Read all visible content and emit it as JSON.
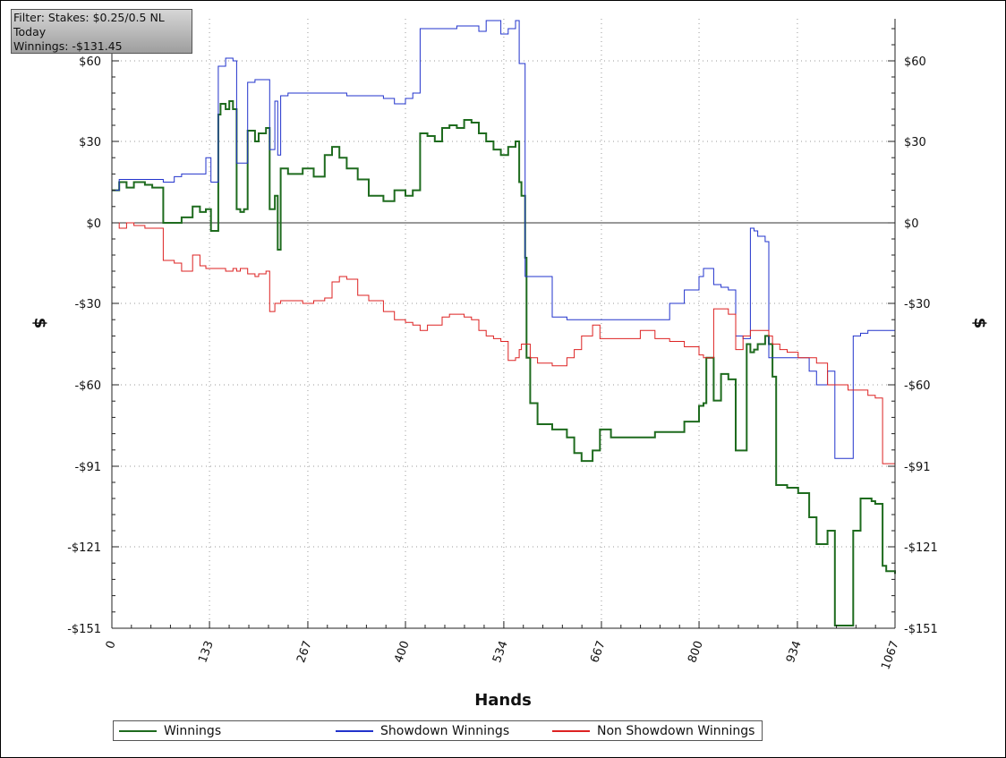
{
  "filter_box": {
    "line1": "Filter: Stakes: $0.25/0.5 NL",
    "line2": "Today",
    "line3": "Winnings: -$131.45"
  },
  "legend_items": [
    {
      "label": "Winnings",
      "color": "#1e6b1e"
    },
    {
      "label": "Showdown Winnings",
      "color": "#2233cc"
    },
    {
      "label": "Non Showdown Winnings",
      "color": "#dd2222"
    }
  ],
  "chart_data": {
    "type": "line",
    "xlabel": "Hands",
    "ylabel": "$",
    "xlim": [
      0,
      1067
    ],
    "ylim": [
      -151,
      75
    ],
    "x_ticks": [
      0,
      133,
      267,
      400,
      534,
      667,
      800,
      934,
      1067
    ],
    "x_tick_labels": [
      "0",
      "133",
      "267",
      "400",
      "534",
      "667",
      "800",
      "934",
      "1067"
    ],
    "y_ticks": [
      60,
      30,
      0,
      -30,
      -60,
      -91,
      -121,
      -151
    ],
    "y_tick_labels": [
      "$60",
      "$30",
      "$0",
      "-$30",
      "-$60",
      "-$91",
      "-$121",
      "-$151"
    ],
    "grid": true,
    "legend_position": "bottom",
    "series": [
      {
        "name": "Winnings",
        "color": "#1e6b1e",
        "x": [
          0,
          10,
          20,
          30,
          45,
          55,
          70,
          85,
          95,
          110,
          120,
          128,
          135,
          140,
          145,
          148,
          155,
          160,
          165,
          170,
          175,
          180,
          185,
          195,
          200,
          210,
          215,
          222,
          226,
          230,
          240,
          260,
          275,
          290,
          300,
          310,
          320,
          335,
          350,
          370,
          385,
          400,
          410,
          420,
          430,
          440,
          450,
          460,
          470,
          480,
          490,
          500,
          510,
          520,
          530,
          540,
          550,
          555,
          558,
          563,
          565,
          570,
          580,
          600,
          620,
          630,
          640,
          655,
          665,
          680,
          700,
          720,
          740,
          760,
          780,
          800,
          806,
          810,
          820,
          830,
          840,
          850,
          860,
          865,
          870,
          875,
          880,
          890,
          895,
          900,
          905,
          910,
          920,
          935,
          950,
          960,
          975,
          985,
          990,
          998,
          1003,
          1010,
          1020,
          1030,
          1035,
          1040,
          1045,
          1050,
          1055,
          1060,
          1067
        ],
        "y": [
          12,
          15,
          13,
          15,
          14,
          13,
          0,
          0,
          2,
          6,
          4,
          5,
          -3,
          -3,
          40,
          44,
          42,
          45,
          42,
          5,
          4,
          5,
          34,
          30,
          33,
          35,
          5,
          10,
          -10,
          20,
          18,
          20,
          17,
          25,
          28,
          24,
          20,
          16,
          10,
          8,
          12,
          10,
          12,
          33,
          32,
          30,
          35,
          36,
          35,
          38,
          37,
          33,
          30,
          27,
          25,
          28,
          30,
          15,
          10,
          -13,
          -50,
          -67,
          -75,
          -77,
          -80,
          -86,
          -89,
          -85,
          -77,
          -80,
          -80,
          -80,
          -78,
          -78,
          -74,
          -68,
          -67,
          -50,
          -66,
          -56,
          -58,
          -85,
          -85,
          -45,
          -48,
          -47,
          -45,
          -42,
          -45,
          -57,
          -98,
          -98,
          -99,
          -101,
          -110,
          -120,
          -115,
          -150,
          -150,
          -150,
          -150,
          -115,
          -103,
          -103,
          -104,
          -105,
          -105,
          -128,
          -130,
          -130,
          -131
        ]
      },
      {
        "name": "Showdown Winnings",
        "color": "#2233cc",
        "x": [
          0,
          10,
          20,
          30,
          45,
          55,
          70,
          85,
          95,
          110,
          120,
          128,
          135,
          140,
          145,
          148,
          155,
          160,
          165,
          170,
          175,
          180,
          185,
          195,
          200,
          210,
          215,
          222,
          226,
          230,
          240,
          260,
          275,
          290,
          300,
          310,
          320,
          335,
          350,
          370,
          385,
          400,
          410,
          420,
          430,
          440,
          450,
          460,
          470,
          480,
          490,
          500,
          510,
          520,
          530,
          540,
          550,
          555,
          558,
          563,
          565,
          570,
          580,
          600,
          620,
          630,
          640,
          655,
          665,
          680,
          700,
          720,
          740,
          760,
          780,
          800,
          806,
          810,
          820,
          830,
          840,
          850,
          860,
          865,
          870,
          875,
          880,
          890,
          895,
          900,
          905,
          910,
          920,
          935,
          950,
          960,
          975,
          985,
          990,
          998,
          1003,
          1010,
          1020,
          1030,
          1035,
          1040,
          1045,
          1050,
          1055,
          1060,
          1067
        ],
        "y": [
          12,
          16,
          16,
          16,
          16,
          16,
          15,
          17,
          18,
          18,
          18,
          24,
          15,
          15,
          58,
          58,
          61,
          61,
          60,
          22,
          22,
          22,
          52,
          53,
          53,
          53,
          27,
          45,
          25,
          47,
          48,
          48,
          48,
          48,
          48,
          48,
          47,
          47,
          47,
          46,
          44,
          46,
          48,
          72,
          72,
          72,
          72,
          72,
          73,
          73,
          73,
          71,
          75,
          75,
          70,
          72,
          75,
          59,
          59,
          -20,
          -20,
          -20,
          -20,
          -35,
          -36,
          -36,
          -36,
          -36,
          -36,
          -36,
          -36,
          -36,
          -36,
          -30,
          -25,
          -20,
          -17,
          -17,
          -23,
          -24,
          -25,
          -42,
          -43,
          -43,
          -2,
          -3,
          -5,
          -7,
          -50,
          -50,
          -50,
          -50,
          -50,
          -50,
          -55,
          -60,
          -55,
          -88,
          -88,
          -88,
          -88,
          -42,
          -41,
          -40,
          -40,
          -40,
          -40,
          -40,
          -40,
          -40,
          -40
        ]
      },
      {
        "name": "Non Showdown Winnings",
        "color": "#dd2222",
        "x": [
          0,
          10,
          20,
          30,
          45,
          55,
          70,
          85,
          95,
          110,
          120,
          128,
          135,
          140,
          145,
          148,
          155,
          160,
          165,
          170,
          175,
          180,
          185,
          195,
          200,
          210,
          215,
          222,
          226,
          230,
          240,
          260,
          275,
          290,
          300,
          310,
          320,
          335,
          350,
          370,
          385,
          400,
          410,
          420,
          430,
          440,
          450,
          460,
          470,
          480,
          490,
          500,
          510,
          520,
          530,
          540,
          550,
          555,
          558,
          563,
          565,
          570,
          580,
          600,
          620,
          630,
          640,
          655,
          665,
          680,
          700,
          720,
          740,
          760,
          780,
          800,
          806,
          810,
          820,
          830,
          840,
          850,
          860,
          865,
          870,
          875,
          880,
          890,
          895,
          900,
          905,
          910,
          920,
          935,
          950,
          960,
          975,
          985,
          990,
          998,
          1003,
          1010,
          1020,
          1030,
          1035,
          1040,
          1045,
          1050,
          1055,
          1060,
          1067
        ],
        "y": [
          0,
          -2,
          0,
          -1,
          -2,
          -2,
          -14,
          -15,
          -18,
          -12,
          -16,
          -17,
          -17,
          -17,
          -17,
          -17,
          -18,
          -18,
          -17,
          -18,
          -17,
          -17,
          -19,
          -20,
          -19,
          -18,
          -33,
          -30,
          -30,
          -29,
          -29,
          -30,
          -29,
          -28,
          -22,
          -20,
          -21,
          -27,
          -29,
          -33,
          -36,
          -37,
          -38,
          -40,
          -38,
          -38,
          -35,
          -34,
          -34,
          -35,
          -36,
          -40,
          -42,
          -43,
          -44,
          -51,
          -50,
          -47,
          -45,
          -45,
          -45,
          -50,
          -52,
          -53,
          -50,
          -47,
          -42,
          -38,
          -43,
          -43,
          -43,
          -40,
          -43,
          -44,
          -46,
          -49,
          -50,
          -50,
          -32,
          -32,
          -34,
          -47,
          -42,
          -42,
          -40,
          -40,
          -40,
          -40,
          -42,
          -45,
          -45,
          -47,
          -48,
          -50,
          -50,
          -52,
          -60,
          -60,
          -60,
          -60,
          -62,
          -62,
          -62,
          -64,
          -64,
          -65,
          -65,
          -90,
          -90,
          -90,
          -90
        ]
      }
    ]
  }
}
